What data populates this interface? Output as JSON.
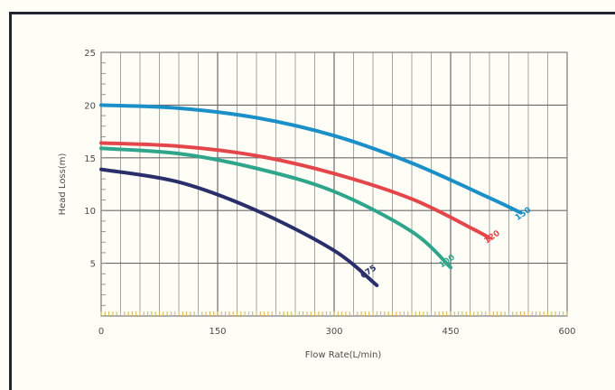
{
  "chart_data": {
    "type": "line",
    "title": "",
    "xlabel": "Flow Rate(L/min)",
    "ylabel": "Head Loss(m)",
    "xlim": [
      0,
      600
    ],
    "ylim": [
      0,
      25
    ],
    "xticks": [
      0,
      150,
      300,
      450,
      600
    ],
    "yticks": [
      5,
      10,
      15,
      20,
      25
    ],
    "xtick_labels": [
      "0",
      "150",
      "300",
      "450",
      "600"
    ],
    "ytick_labels": [
      "5",
      "10",
      "15",
      "20",
      "25"
    ],
    "grid": true,
    "series": [
      {
        "name": "150",
        "color": "#1b8fc7",
        "x": [
          0,
          100,
          200,
          300,
          400,
          500,
          540
        ],
        "y": [
          20.0,
          19.7,
          18.8,
          17.1,
          14.5,
          11.2,
          9.8
        ]
      },
      {
        "name": "120",
        "color": "#e4474b",
        "x": [
          0,
          100,
          200,
          300,
          400,
          480,
          500
        ],
        "y": [
          16.4,
          16.1,
          15.2,
          13.5,
          11.1,
          8.2,
          7.4
        ]
      },
      {
        "name": "100",
        "color": "#2fa68c",
        "x": [
          0,
          100,
          200,
          300,
          400,
          450
        ],
        "y": [
          15.9,
          15.4,
          14.0,
          11.8,
          8.0,
          4.6
        ]
      },
      {
        "name": "075",
        "color": "#2a2f6b",
        "x": [
          0,
          100,
          200,
          300,
          355
        ],
        "y": [
          13.9,
          12.7,
          10.0,
          6.2,
          2.9
        ]
      }
    ],
    "annotations": [
      {
        "text": "150",
        "x": 545,
        "y": 9.5
      },
      {
        "text": "120",
        "x": 505,
        "y": 7.3
      },
      {
        "text": "100",
        "x": 447,
        "y": 5.0
      },
      {
        "text": "075",
        "x": 346,
        "y": 4.0
      }
    ]
  }
}
